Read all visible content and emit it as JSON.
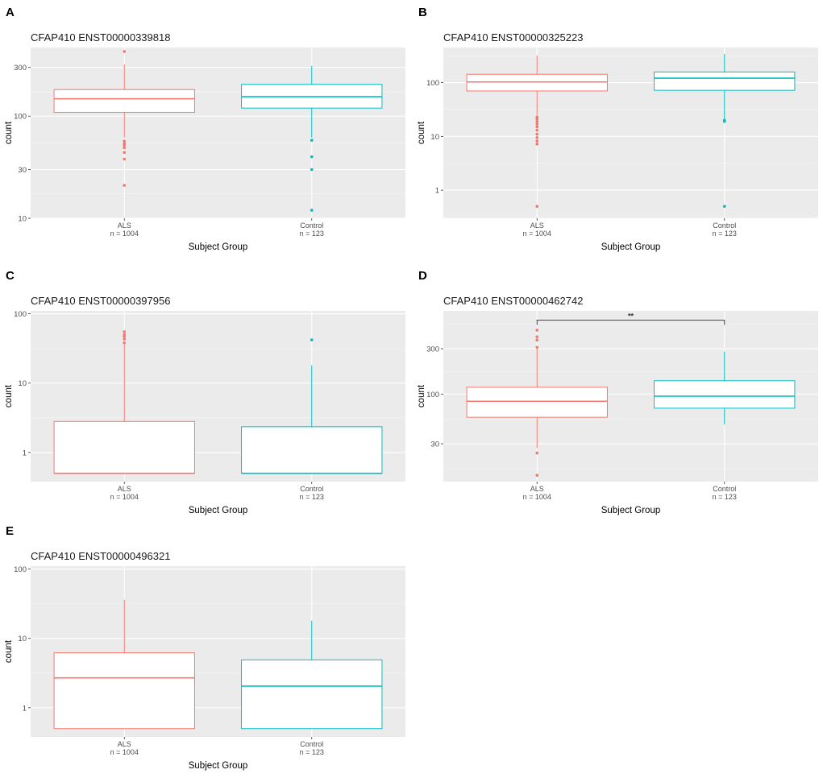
{
  "chart_data": [
    {
      "panel": "A",
      "type": "boxplot",
      "title": "CFAP410 ENST00000339818",
      "xlabel": "Subject Group",
      "ylabel": "count",
      "yscale": "log10",
      "ylim": [
        10,
        470
      ],
      "yticks": [
        {
          "value": 10,
          "label": "10"
        },
        {
          "value": 30,
          "label": "30"
        },
        {
          "value": 100,
          "label": "100"
        },
        {
          "value": 300,
          "label": "300"
        }
      ],
      "groups": [
        {
          "name": "ALS",
          "n_label": "n = 1004",
          "color": "#F8766D",
          "min": 62,
          "q1": 109,
          "median": 148,
          "q3": 182,
          "max": 320,
          "outliers": [
            430,
            57,
            54,
            52,
            49,
            44,
            38,
            21
          ]
        },
        {
          "name": "Control",
          "n_label": "n = 123",
          "color": "#00BFC4",
          "min": 62,
          "q1": 120,
          "median": 155,
          "q3": 205,
          "max": 310,
          "outliers": [
            58,
            40,
            30,
            12
          ]
        }
      ]
    },
    {
      "panel": "B",
      "type": "boxplot",
      "title": "CFAP410 ENST00000325223",
      "xlabel": "Subject Group",
      "ylabel": "count",
      "yscale": "log10",
      "ylim": [
        0.3,
        450
      ],
      "yticks": [
        {
          "value": 1,
          "label": "1"
        },
        {
          "value": 10,
          "label": "10"
        },
        {
          "value": 100,
          "label": "100"
        }
      ],
      "groups": [
        {
          "name": "ALS",
          "n_label": "n = 1004",
          "color": "#F8766D",
          "min": 25,
          "q1": 70,
          "median": 103,
          "q3": 143,
          "max": 320,
          "outliers": [
            23,
            21,
            19,
            17,
            15,
            13,
            11,
            9.5,
            8.2,
            7.2,
            0.5
          ]
        },
        {
          "name": "Control",
          "n_label": "n = 123",
          "color": "#00BFC4",
          "min": 21,
          "q1": 72,
          "median": 121,
          "q3": 158,
          "max": 340,
          "outliers": [
            20,
            19,
            0.5
          ]
        }
      ]
    },
    {
      "panel": "C",
      "type": "boxplot",
      "title": "CFAP410 ENST00000397956",
      "xlabel": "Subject Group",
      "ylabel": "count",
      "yscale": "log10",
      "ylim": [
        0.38,
        110
      ],
      "yticks": [
        {
          "value": 1,
          "label": "1"
        },
        {
          "value": 10,
          "label": "10"
        },
        {
          "value": 100,
          "label": "100"
        }
      ],
      "groups": [
        {
          "name": "ALS",
          "n_label": "n = 1004",
          "color": "#F8766D",
          "min": 0.5,
          "q1": 0.5,
          "median": 0.5,
          "q3": 2.8,
          "max": 36,
          "outliers": [
            38,
            43,
            47,
            50,
            55
          ]
        },
        {
          "name": "Control",
          "n_label": "n = 123",
          "color": "#00BFC4",
          "min": 0.5,
          "q1": 0.5,
          "median": 0.5,
          "q3": 2.35,
          "max": 18,
          "outliers": [
            42
          ]
        }
      ]
    },
    {
      "panel": "D",
      "type": "boxplot",
      "title": "CFAP410 ENST00000462742",
      "xlabel": "Subject Group",
      "ylabel": "count",
      "yscale": "log10",
      "ylim": [
        12,
        750
      ],
      "yticks": [
        {
          "value": 30,
          "label": "30"
        },
        {
          "value": 100,
          "label": "100"
        },
        {
          "value": 300,
          "label": "300"
        }
      ],
      "significance": {
        "label": "**",
        "y": 600
      },
      "groups": [
        {
          "name": "ALS",
          "n_label": "n = 1004",
          "color": "#F8766D",
          "min": 27,
          "q1": 57,
          "median": 84,
          "q3": 118,
          "max": 300,
          "outliers": [
            310,
            370,
            400,
            470,
            24,
            14
          ]
        },
        {
          "name": "Control",
          "n_label": "n = 123",
          "color": "#00BFC4",
          "min": 48,
          "q1": 71,
          "median": 95,
          "q3": 138,
          "max": 280,
          "outliers": []
        }
      ]
    },
    {
      "panel": "E",
      "type": "boxplot",
      "title": "CFAP410 ENST00000496321",
      "xlabel": "Subject Group",
      "ylabel": "count",
      "yscale": "log10",
      "ylim": [
        0.38,
        110
      ],
      "yticks": [
        {
          "value": 1,
          "label": "1"
        },
        {
          "value": 10,
          "label": "10"
        },
        {
          "value": 100,
          "label": "100"
        }
      ],
      "groups": [
        {
          "name": "ALS",
          "n_label": "n = 1004",
          "color": "#F8766D",
          "min": 0.5,
          "q1": 0.5,
          "median": 2.7,
          "q3": 6.2,
          "max": 36,
          "outliers": []
        },
        {
          "name": "Control",
          "n_label": "n = 123",
          "color": "#00BFC4",
          "min": 0.5,
          "q1": 0.5,
          "median": 2.05,
          "q3": 4.9,
          "max": 18,
          "outliers": []
        }
      ]
    }
  ]
}
